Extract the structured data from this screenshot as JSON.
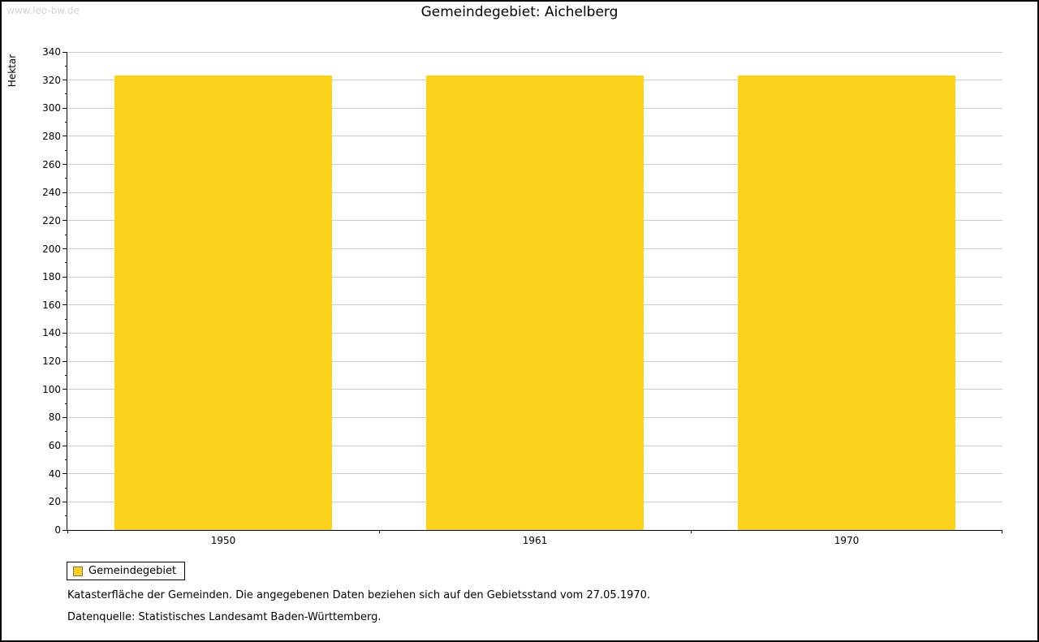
{
  "watermark": "www.leo-bw.de",
  "chart_data": {
    "type": "bar",
    "title": "Gemeindegebiet: Aichelberg",
    "ylabel": "Hektar",
    "xlabel": "",
    "categories": [
      "1950",
      "1961",
      "1970"
    ],
    "series": [
      {
        "name": "Gemeindegebiet",
        "values": [
          323,
          323,
          323
        ]
      }
    ],
    "ylim": [
      0,
      340
    ],
    "ytick_step": 20,
    "yminor_step": 10,
    "grid": true,
    "legend_position": "bottom-left",
    "bar_color": "#FCD21C",
    "grid_color": "#cccccc",
    "axis_color": "#000000"
  },
  "legend": {
    "label": "Gemeindegebiet"
  },
  "notes": [
    "Katasterfläche der Gemeinden. Die angegebenen Daten beziehen sich auf den Gebietsstand vom 27.05.1970.",
    "Datenquelle: Statistisches Landesamt Baden-Württemberg."
  ]
}
